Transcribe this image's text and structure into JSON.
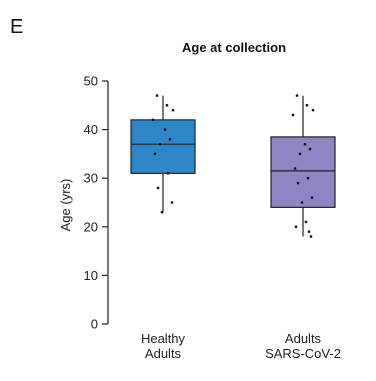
{
  "panel_label": "E",
  "chart_data": {
    "type": "box",
    "title": "Age at collection",
    "xlabel": "",
    "ylabel": "Age (yrs)",
    "ylim": [
      0,
      50
    ],
    "yticks": [
      "0",
      "10",
      "20",
      "30",
      "40",
      "50"
    ],
    "grid": false,
    "categories": [
      {
        "lines": [
          "Healthy",
          "Adults"
        ]
      },
      {
        "lines": [
          "Adults",
          "SARS-CoV-2"
        ]
      }
    ],
    "boxes": [
      {
        "category": "Healthy Adults",
        "color": "#2e86c8",
        "min": 23,
        "q1": 31,
        "median": 37,
        "q3": 42,
        "max": 47,
        "points": [
          47,
          45,
          44,
          42,
          40,
          38,
          37,
          35,
          31,
          28,
          25,
          23
        ]
      },
      {
        "category": "Adults SARS-CoV-2",
        "color": "#8c86c2",
        "min": 18,
        "q1": 24,
        "median": 31.5,
        "q3": 38.5,
        "max": 47,
        "points": [
          47,
          45,
          44,
          43,
          37,
          36,
          35,
          32,
          30,
          29,
          26,
          25,
          21,
          20,
          19,
          18
        ]
      }
    ]
  }
}
